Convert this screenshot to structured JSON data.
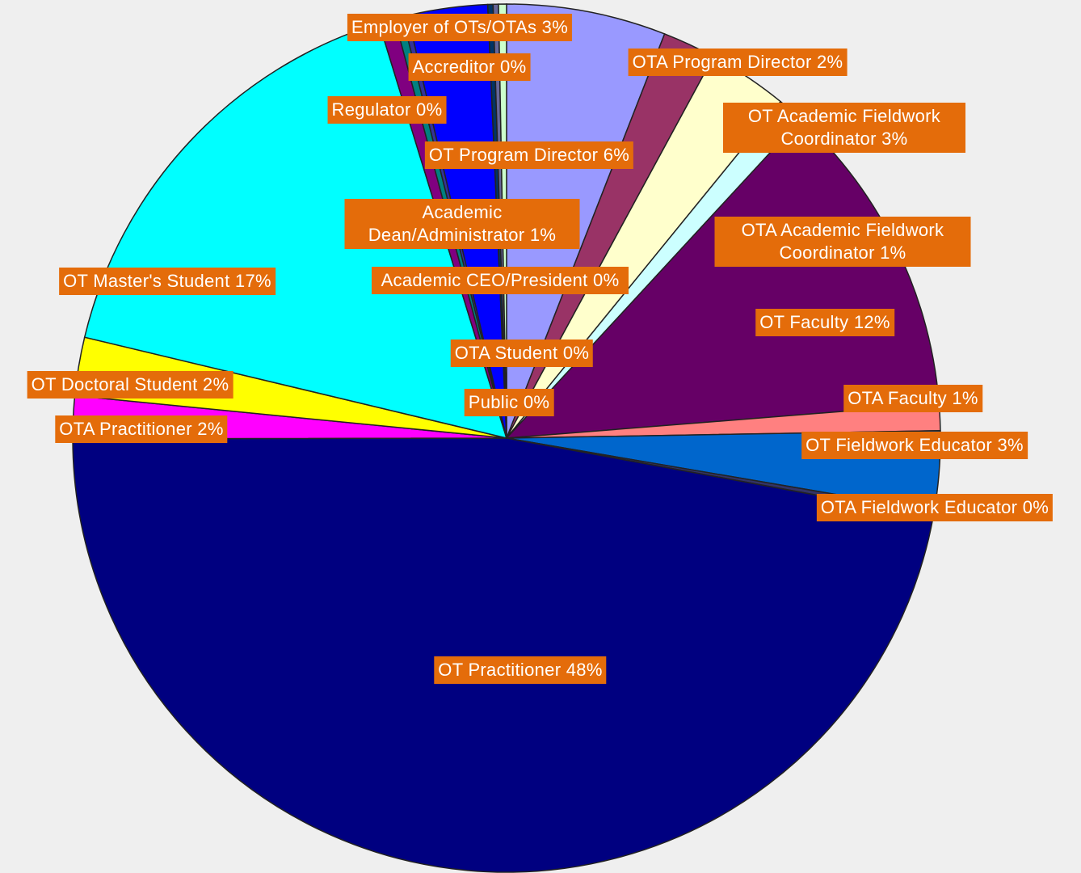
{
  "chart_data": {
    "type": "pie",
    "categories": [
      "OT Program Director",
      "OTA Program Director",
      "OT Academic Fieldwork Coordinator",
      "OTA Academic Fieldwork Coordinator",
      "OT Faculty",
      "OTA Faculty",
      "OT Fieldwork Educator",
      "OTA Fieldwork Educator",
      "OT Practitioner",
      "OTA Practitioner",
      "OT Doctoral Student",
      "OT Master's Student",
      "Academic Dean/Administrator",
      "Regulator",
      "Accreditor",
      "Employer of OTs/OTAs",
      "Academic CEO/President",
      "OTA Student",
      "Public"
    ],
    "values": [
      6,
      2,
      3,
      1,
      12,
      1,
      3,
      0.2,
      47.6,
      1.6,
      2.2,
      16.7,
      0.6,
      0.3,
      0.2,
      3,
      0.2,
      0.2,
      0.3
    ],
    "value_labels": [
      "6%",
      "2%",
      "3%",
      "1%",
      "12%",
      "1%",
      "3%",
      "0%",
      "48%",
      "2%",
      "2%",
      "17%",
      "1%",
      "0%",
      "0%",
      "3%",
      "0%",
      "0%",
      "0%"
    ],
    "colors": [
      "#9999ff",
      "#993366",
      "#ffffcc",
      "#ccffff",
      "#660066",
      "#ff8080",
      "#0066cc",
      "#333366",
      "#000080",
      "#ff00ff",
      "#ffff00",
      "#00ffff",
      "#800080",
      "#008080",
      "#333399",
      "#0000ff",
      "#003366",
      "#666699",
      "#ccffcc"
    ]
  }
}
